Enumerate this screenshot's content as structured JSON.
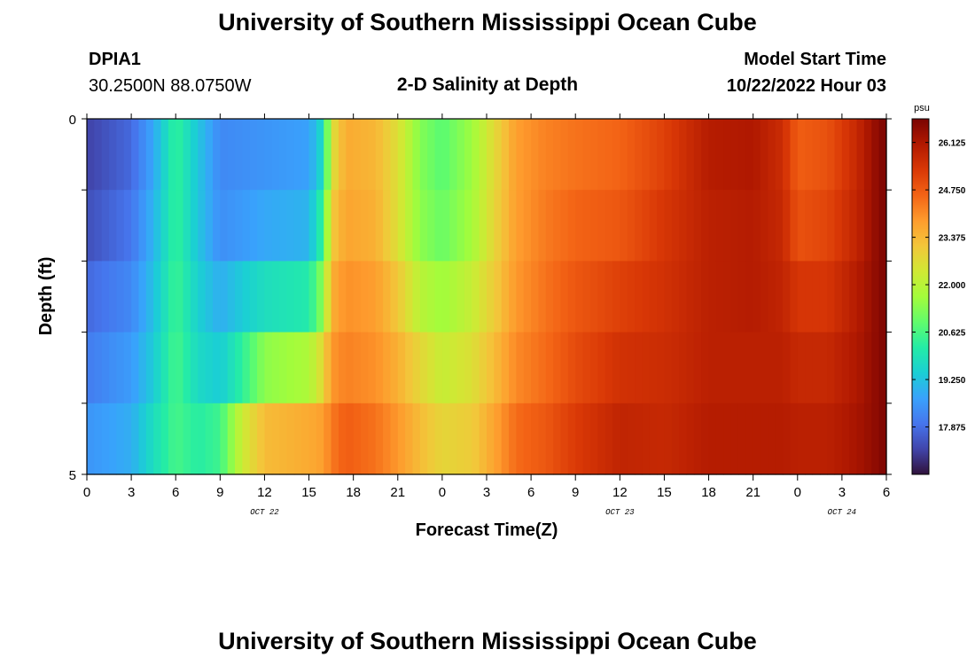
{
  "page": {
    "title": "University of Southern Mississippi Ocean Cube",
    "station": "DPIA1",
    "coords": "30.2500N  88.0750W",
    "subtitle": "2-D Salinity at Depth",
    "model_label": "Model Start Time",
    "model_time": "10/22/2022 Hour 03",
    "footer_title": "University of Southern Mississippi Ocean Cube"
  },
  "chart_data": {
    "type": "heatmap",
    "title": "2-D Salinity at Depth",
    "xlabel": "Forecast Time(Z)",
    "ylabel": "Depth (ft)",
    "x_tick_labels": [
      "0",
      "3",
      "6",
      "9",
      "12",
      "15",
      "18",
      "21",
      "0",
      "3",
      "6",
      "9",
      "12",
      "15",
      "18",
      "21",
      "0",
      "3",
      "6"
    ],
    "date_labels": [
      {
        "label": "OCT 22",
        "at_hour": 12
      },
      {
        "label": "OCT 23",
        "at_hour": 36
      },
      {
        "label": "OCT 24",
        "at_hour": 51
      }
    ],
    "x_range_hours": [
      0,
      54
    ],
    "y_tick_labels": [
      "0",
      "5"
    ],
    "y_range": [
      0,
      5
    ],
    "depths_ft": [
      0.5,
      1.5,
      2.5,
      3.5,
      4.5
    ],
    "colorbar": {
      "unit": "psu",
      "min": 16.5,
      "max": 26.81,
      "ticks": [
        "26.125",
        "24.750",
        "23.375",
        "22.000",
        "20.625",
        "19.250",
        "17.875"
      ],
      "colormap": [
        "#30123b",
        "#4145ab",
        "#4675ed",
        "#39a2fc",
        "#1bcfd4",
        "#24eca6",
        "#61fc6c",
        "#a4fc3b",
        "#d1e834",
        "#f3c63a",
        "#fe9b2d",
        "#f36315",
        "#d93806",
        "#b11901",
        "#7a0402"
      ]
    },
    "salinity_profile": [
      {
        "hour": 0,
        "values": [
          17.2,
          17.4,
          17.8,
          18.1,
          18.5
        ]
      },
      {
        "hour": 3,
        "values": [
          17.8,
          18.0,
          18.3,
          18.6,
          18.9
        ]
      },
      {
        "hour": 4.5,
        "values": [
          18.8,
          19.0,
          19.2,
          19.4,
          19.8
        ]
      },
      {
        "hour": 6,
        "values": [
          20.4,
          20.4,
          20.5,
          20.6,
          20.6
        ]
      },
      {
        "hour": 7.5,
        "values": [
          19.3,
          19.3,
          19.5,
          19.7,
          20.2
        ]
      },
      {
        "hour": 9,
        "values": [
          18.3,
          18.4,
          18.9,
          19.4,
          20.5
        ]
      },
      {
        "hour": 10.5,
        "values": [
          18.4,
          18.6,
          19.4,
          20.3,
          22.3
        ]
      },
      {
        "hour": 12,
        "values": [
          18.5,
          18.8,
          19.8,
          21.4,
          23.3
        ]
      },
      {
        "hour": 15,
        "values": [
          18.7,
          19.0,
          20.1,
          21.8,
          23.6
        ]
      },
      {
        "hour": 16,
        "values": [
          19.8,
          20.5,
          21.5,
          22.8,
          23.8
        ]
      },
      {
        "hour": 16.5,
        "values": [
          22.5,
          23.0,
          23.5,
          23.9,
          24.3
        ]
      },
      {
        "hour": 17.5,
        "values": [
          23.6,
          23.7,
          24.0,
          24.2,
          24.7
        ]
      },
      {
        "hour": 19.5,
        "values": [
          23.4,
          23.5,
          23.8,
          24.0,
          24.4
        ]
      },
      {
        "hour": 21,
        "values": [
          22.6,
          22.6,
          23.1,
          23.5,
          23.9
        ]
      },
      {
        "hour": 22.5,
        "values": [
          21.3,
          21.4,
          22.0,
          22.8,
          23.3
        ]
      },
      {
        "hour": 24,
        "values": [
          20.8,
          21.0,
          21.6,
          22.2,
          22.8
        ]
      },
      {
        "hour": 26,
        "values": [
          21.6,
          21.7,
          22.2,
          22.6,
          23.0
        ]
      },
      {
        "hour": 27.5,
        "values": [
          22.7,
          22.8,
          23.0,
          23.3,
          23.7
        ]
      },
      {
        "hour": 29,
        "values": [
          23.8,
          23.8,
          23.9,
          24.1,
          24.5
        ]
      },
      {
        "hour": 31,
        "values": [
          24.2,
          24.3,
          24.4,
          24.5,
          24.8
        ]
      },
      {
        "hour": 33,
        "values": [
          24.4,
          24.6,
          24.8,
          25.0,
          25.3
        ]
      },
      {
        "hour": 36,
        "values": [
          24.6,
          24.8,
          25.2,
          25.5,
          25.8
        ]
      },
      {
        "hour": 39,
        "values": [
          25.2,
          25.4,
          25.5,
          25.6,
          25.7
        ]
      },
      {
        "hour": 42,
        "values": [
          26.0,
          25.9,
          25.9,
          25.9,
          26.0
        ]
      },
      {
        "hour": 45,
        "values": [
          26.1,
          26.0,
          26.0,
          25.9,
          26.0
        ]
      },
      {
        "hour": 47,
        "values": [
          25.6,
          25.7,
          25.8,
          25.9,
          26.0
        ]
      },
      {
        "hour": 48,
        "values": [
          24.7,
          24.9,
          25.4,
          25.7,
          25.9
        ]
      },
      {
        "hour": 50,
        "values": [
          24.9,
          25.1,
          25.4,
          25.7,
          25.9
        ]
      },
      {
        "hour": 52,
        "values": [
          25.7,
          25.8,
          26.0,
          26.1,
          26.2
        ]
      },
      {
        "hour": 53.5,
        "values": [
          26.6,
          26.6,
          26.6,
          26.6,
          26.6
        ]
      },
      {
        "hour": 54,
        "values": [
          26.8,
          26.8,
          26.8,
          26.8,
          26.8
        ]
      }
    ]
  }
}
